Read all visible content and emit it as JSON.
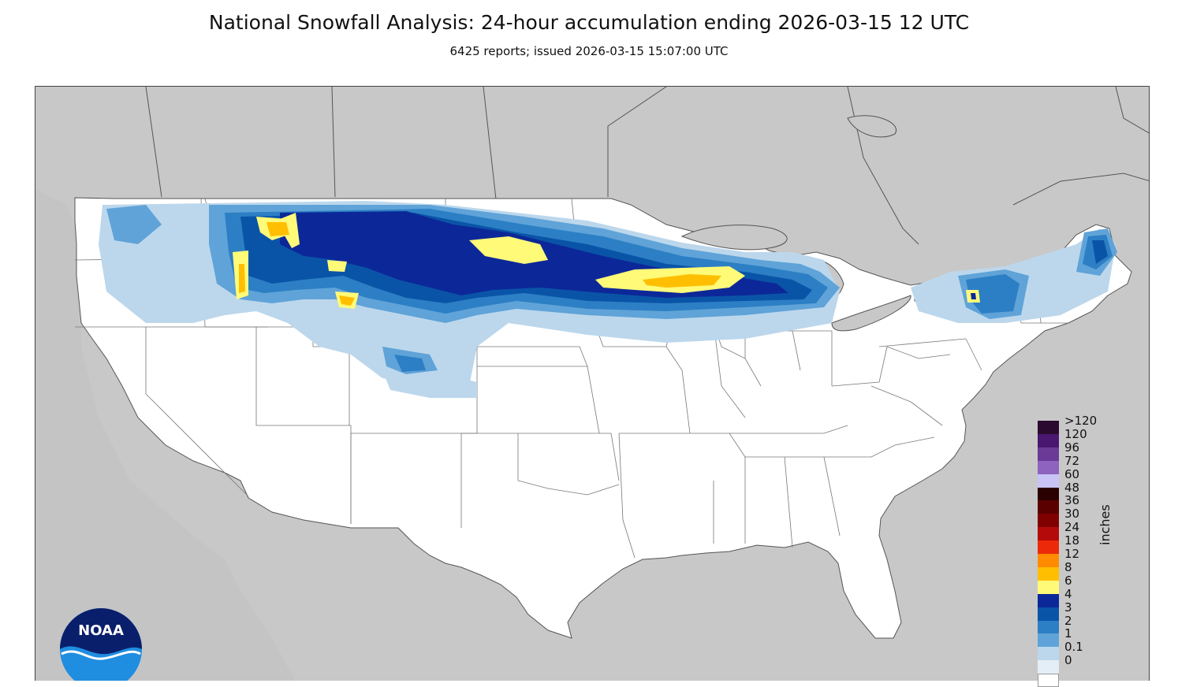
{
  "title": "National Snowfall Analysis: 24-hour accumulation ending 2026-03-15 12 UTC",
  "subtitle": "6425 reports; issued 2026-03-15 15:07:00 UTC",
  "legend": {
    "unit": "inches",
    "levels": [
      {
        "label": ">120",
        "color": "#2a0a2e"
      },
      {
        "label": "120",
        "color": "#4a1770"
      },
      {
        "label": "96",
        "color": "#6a3a96"
      },
      {
        "label": "72",
        "color": "#8d63bf"
      },
      {
        "label": "60",
        "color": "#c8c4f5"
      },
      {
        "label": "48",
        "color": "#2a0000"
      },
      {
        "label": "36",
        "color": "#5a0000"
      },
      {
        "label": "30",
        "color": "#800000"
      },
      {
        "label": "24",
        "color": "#b40a0a"
      },
      {
        "label": "18",
        "color": "#ec2a0a"
      },
      {
        "label": "12",
        "color": "#ff8c00"
      },
      {
        "label": "8",
        "color": "#ffbf00"
      },
      {
        "label": "6",
        "color": "#fffa78"
      },
      {
        "label": "4",
        "color": "#0c2898"
      },
      {
        "label": "3",
        "color": "#0a54a8"
      },
      {
        "label": "2",
        "color": "#2c7fc4"
      },
      {
        "label": "1",
        "color": "#5fa3d8"
      },
      {
        "label": "0.1",
        "color": "#bcd7ec"
      },
      {
        "label": "0",
        "color": "#e4eef6"
      }
    ],
    "zero_color": "#ffffff"
  },
  "logo": {
    "text": "NOAA"
  },
  "colors": {
    "land_outside": "#c8c8c8",
    "conus": "#ffffff",
    "borders": "#555555"
  }
}
